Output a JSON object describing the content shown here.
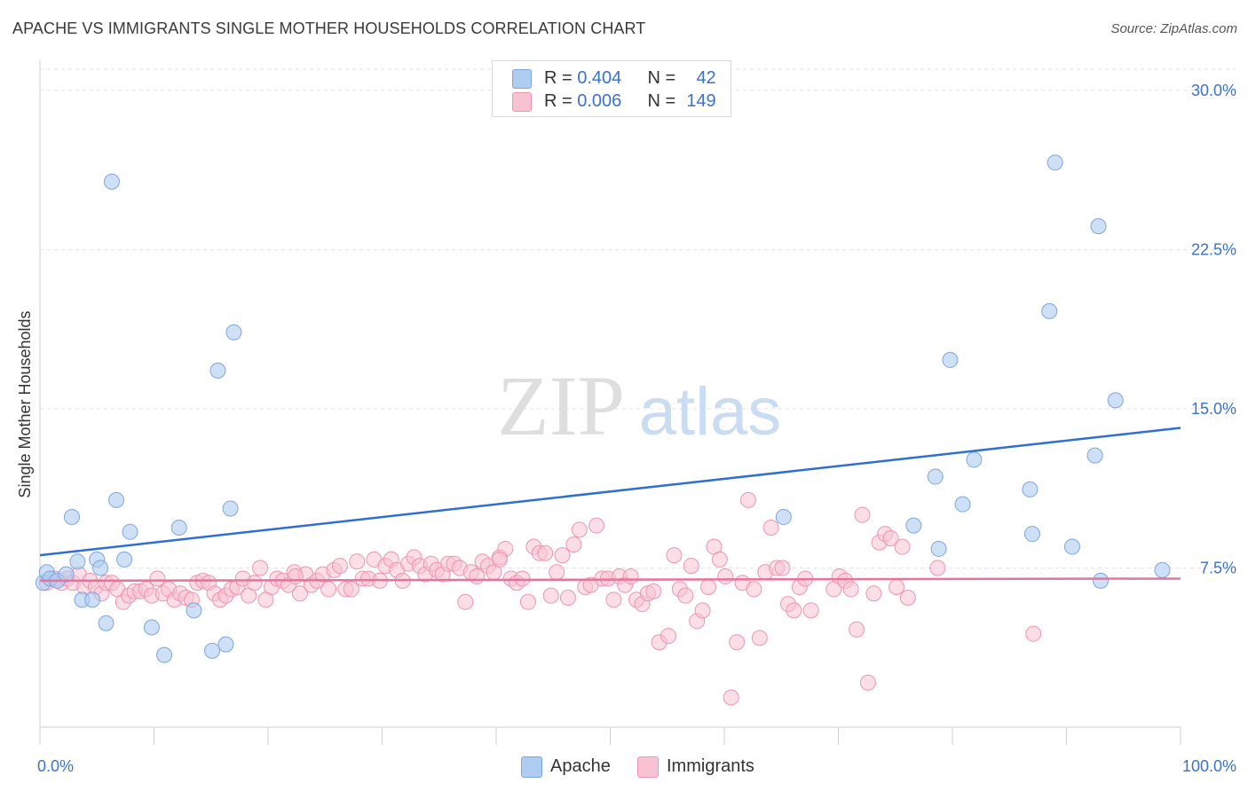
{
  "title": "APACHE VS IMMIGRANTS SINGLE MOTHER HOUSEHOLDS CORRELATION CHART",
  "source": "Source: ZipAtlas.com",
  "watermark": {
    "zip": "ZIP",
    "atlas": "atlas"
  },
  "legend_top": [
    {
      "series": "Apache",
      "r_label": "R = ",
      "r_value": "0.404",
      "n_label": "N = ",
      "n_value": "42",
      "color": "#aecbf0",
      "border": "#7ea6de"
    },
    {
      "series": "Immigrants",
      "r_label": "R = ",
      "r_value": "0.006",
      "n_label": "N = ",
      "n_value": "149",
      "color": "#f7c3d2",
      "border": "#ee95b0"
    }
  ],
  "legend_bottom": [
    {
      "label": "Apache",
      "color": "#aecbf0",
      "border": "#7ea6de"
    },
    {
      "label": "Immigrants",
      "color": "#f7c3d2",
      "border": "#ee95b0"
    }
  ],
  "chart_data": {
    "type": "scatter",
    "title": "APACHE VS IMMIGRANTS SINGLE MOTHER HOUSEHOLDS CORRELATION CHART",
    "xlabel": "",
    "ylabel": "Single Mother Households",
    "xlim": [
      0,
      100
    ],
    "ylim": [
      0,
      31
    ],
    "x_tick_labels": [
      "0.0%",
      "100.0%"
    ],
    "y_ticks": [
      7.5,
      15.0,
      22.5,
      30.0
    ],
    "y_tick_labels": [
      "7.5%",
      "15.0%",
      "22.5%",
      "30.0%"
    ],
    "grid": "horizontal dashed",
    "legend_position": "top-center",
    "series": [
      {
        "name": "Apache",
        "color": "#aecbf0",
        "edge": "#7ea6de",
        "line_color": "#2f6fd0",
        "trend": [
          [
            0,
            8.1
          ],
          [
            100,
            14.1
          ]
        ],
        "points": [
          [
            0.3,
            6.8
          ],
          [
            0.6,
            7.3
          ],
          [
            0.9,
            7.0
          ],
          [
            1.5,
            6.9
          ],
          [
            2.3,
            7.2
          ],
          [
            2.8,
            9.9
          ],
          [
            3.3,
            7.8
          ],
          [
            3.7,
            6.0
          ],
          [
            4.6,
            6.0
          ],
          [
            5.0,
            7.9
          ],
          [
            5.3,
            7.5
          ],
          [
            5.8,
            4.9
          ],
          [
            6.3,
            25.7
          ],
          [
            6.7,
            10.7
          ],
          [
            7.4,
            7.9
          ],
          [
            7.9,
            9.2
          ],
          [
            9.8,
            4.7
          ],
          [
            10.9,
            3.4
          ],
          [
            12.2,
            9.4
          ],
          [
            13.5,
            5.5
          ],
          [
            15.1,
            3.6
          ],
          [
            15.6,
            16.8
          ],
          [
            16.3,
            3.9
          ],
          [
            16.7,
            10.3
          ],
          [
            17.0,
            18.6
          ],
          [
            65.2,
            9.9
          ],
          [
            76.6,
            9.5
          ],
          [
            78.8,
            8.4
          ],
          [
            78.5,
            11.8
          ],
          [
            79.8,
            17.3
          ],
          [
            80.9,
            10.5
          ],
          [
            81.9,
            12.6
          ],
          [
            86.8,
            11.2
          ],
          [
            87.0,
            9.1
          ],
          [
            88.5,
            19.6
          ],
          [
            89.0,
            26.6
          ],
          [
            90.5,
            8.5
          ],
          [
            92.5,
            12.8
          ],
          [
            92.8,
            23.6
          ],
          [
            93.0,
            6.9
          ],
          [
            94.3,
            15.4
          ],
          [
            98.4,
            7.4
          ]
        ]
      },
      {
        "name": "Immigrants",
        "color": "#f7c3d2",
        "edge": "#ee95b0",
        "line_color": "#e8729b",
        "trend": [
          [
            0,
            6.9
          ],
          [
            100,
            7.0
          ]
        ],
        "points": [
          [
            0.6,
            6.8
          ],
          [
            1.3,
            7.0
          ],
          [
            1.9,
            6.8
          ],
          [
            2.4,
            7.0
          ],
          [
            2.9,
            6.8
          ],
          [
            3.4,
            7.2
          ],
          [
            3.9,
            6.6
          ],
          [
            4.4,
            6.9
          ],
          [
            4.9,
            6.6
          ],
          [
            5.4,
            6.3
          ],
          [
            5.8,
            6.8
          ],
          [
            6.3,
            6.8
          ],
          [
            6.8,
            6.5
          ],
          [
            7.3,
            5.9
          ],
          [
            7.8,
            6.2
          ],
          [
            8.3,
            6.4
          ],
          [
            8.8,
            6.4
          ],
          [
            9.3,
            6.5
          ],
          [
            9.8,
            6.2
          ],
          [
            10.3,
            7.0
          ],
          [
            10.8,
            6.3
          ],
          [
            11.3,
            6.5
          ],
          [
            11.8,
            6.0
          ],
          [
            12.3,
            6.3
          ],
          [
            12.8,
            6.1
          ],
          [
            13.3,
            6.0
          ],
          [
            13.8,
            6.8
          ],
          [
            14.3,
            6.9
          ],
          [
            14.8,
            6.8
          ],
          [
            15.3,
            6.3
          ],
          [
            15.8,
            6.0
          ],
          [
            16.3,
            6.2
          ],
          [
            16.8,
            6.5
          ],
          [
            17.3,
            6.6
          ],
          [
            17.8,
            7.0
          ],
          [
            18.3,
            6.2
          ],
          [
            18.8,
            6.8
          ],
          [
            19.3,
            7.5
          ],
          [
            19.8,
            6.0
          ],
          [
            20.3,
            6.6
          ],
          [
            20.8,
            7.0
          ],
          [
            21.3,
            6.9
          ],
          [
            21.8,
            6.7
          ],
          [
            22.3,
            7.3
          ],
          [
            22.8,
            6.3
          ],
          [
            23.3,
            7.2
          ],
          [
            23.8,
            6.7
          ],
          [
            24.3,
            6.9
          ],
          [
            24.8,
            7.2
          ],
          [
            25.3,
            6.5
          ],
          [
            25.8,
            7.4
          ],
          [
            26.3,
            7.6
          ],
          [
            26.8,
            6.5
          ],
          [
            27.3,
            6.5
          ],
          [
            27.8,
            7.8
          ],
          [
            28.3,
            7.0
          ],
          [
            28.8,
            7.0
          ],
          [
            29.3,
            7.9
          ],
          [
            29.8,
            6.9
          ],
          [
            30.3,
            7.6
          ],
          [
            30.8,
            7.9
          ],
          [
            31.3,
            7.4
          ],
          [
            31.8,
            6.9
          ],
          [
            32.3,
            7.7
          ],
          [
            32.8,
            8.0
          ],
          [
            33.3,
            7.6
          ],
          [
            33.8,
            7.2
          ],
          [
            34.3,
            7.7
          ],
          [
            34.8,
            7.4
          ],
          [
            35.3,
            7.2
          ],
          [
            35.8,
            7.7
          ],
          [
            36.3,
            7.7
          ],
          [
            36.8,
            7.5
          ],
          [
            37.3,
            5.9
          ],
          [
            37.8,
            7.3
          ],
          [
            38.3,
            7.1
          ],
          [
            38.8,
            7.8
          ],
          [
            39.3,
            7.6
          ],
          [
            39.8,
            7.3
          ],
          [
            40.3,
            8.0
          ],
          [
            40.8,
            8.4
          ],
          [
            41.3,
            7.0
          ],
          [
            41.8,
            6.8
          ],
          [
            42.3,
            7.0
          ],
          [
            42.8,
            5.9
          ],
          [
            43.3,
            8.5
          ],
          [
            43.8,
            8.2
          ],
          [
            44.3,
            8.2
          ],
          [
            44.8,
            6.2
          ],
          [
            45.3,
            7.3
          ],
          [
            45.8,
            8.1
          ],
          [
            46.3,
            6.1
          ],
          [
            46.8,
            8.6
          ],
          [
            47.3,
            9.3
          ],
          [
            47.8,
            6.6
          ],
          [
            48.3,
            6.7
          ],
          [
            48.8,
            9.5
          ],
          [
            49.3,
            7.0
          ],
          [
            49.8,
            7.0
          ],
          [
            50.3,
            6.0
          ],
          [
            50.8,
            7.1
          ],
          [
            51.3,
            6.7
          ],
          [
            51.8,
            7.1
          ],
          [
            52.3,
            6.0
          ],
          [
            52.8,
            5.8
          ],
          [
            53.3,
            6.3
          ],
          [
            53.8,
            6.4
          ],
          [
            54.3,
            4.0
          ],
          [
            55.1,
            4.3
          ],
          [
            55.6,
            8.1
          ],
          [
            56.1,
            6.5
          ],
          [
            56.6,
            6.2
          ],
          [
            57.1,
            7.6
          ],
          [
            57.6,
            5.0
          ],
          [
            58.1,
            5.5
          ],
          [
            58.6,
            6.6
          ],
          [
            59.1,
            8.5
          ],
          [
            59.6,
            7.9
          ],
          [
            60.1,
            7.1
          ],
          [
            60.6,
            1.4
          ],
          [
            61.1,
            4.0
          ],
          [
            61.6,
            6.8
          ],
          [
            62.1,
            10.7
          ],
          [
            62.6,
            6.5
          ],
          [
            63.1,
            4.2
          ],
          [
            63.6,
            7.3
          ],
          [
            64.1,
            9.4
          ],
          [
            64.6,
            7.5
          ],
          [
            65.1,
            7.5
          ],
          [
            65.6,
            5.8
          ],
          [
            66.1,
            5.5
          ],
          [
            66.6,
            6.6
          ],
          [
            67.1,
            7.0
          ],
          [
            67.6,
            5.5
          ],
          [
            69.6,
            6.5
          ],
          [
            70.1,
            7.1
          ],
          [
            70.6,
            6.9
          ],
          [
            71.1,
            6.5
          ],
          [
            71.6,
            4.6
          ],
          [
            72.1,
            10.0
          ],
          [
            72.6,
            2.1
          ],
          [
            73.1,
            6.3
          ],
          [
            73.6,
            8.7
          ],
          [
            74.1,
            9.1
          ],
          [
            74.6,
            8.9
          ],
          [
            75.1,
            6.6
          ],
          [
            75.6,
            8.5
          ],
          [
            76.1,
            6.1
          ],
          [
            78.7,
            7.5
          ],
          [
            87.1,
            4.4
          ],
          [
            40.3,
            7.9
          ],
          [
            22.4,
            7.1
          ]
        ]
      }
    ]
  }
}
